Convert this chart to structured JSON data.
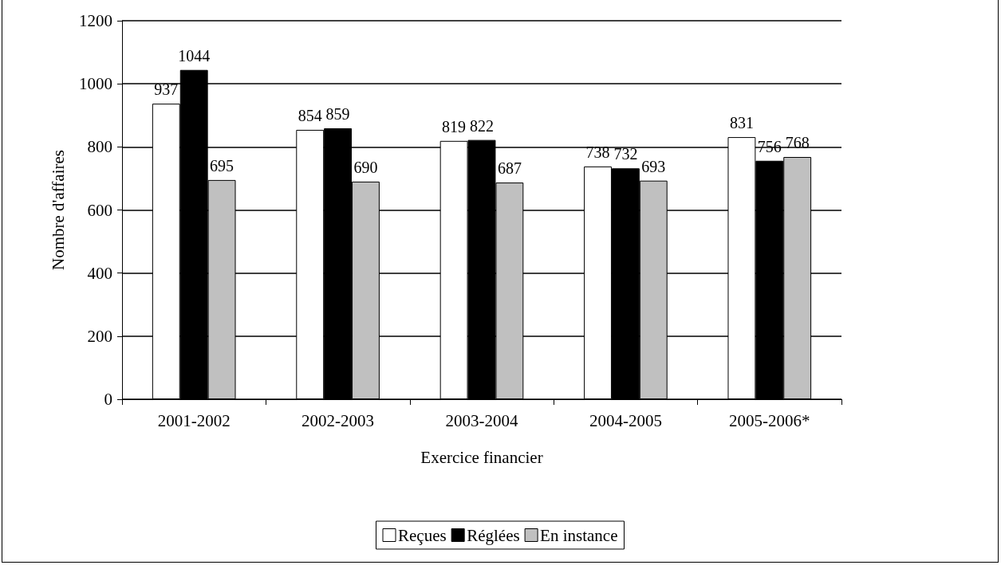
{
  "chart_data": {
    "type": "bar",
    "xlabel": "Exercice financier",
    "ylabel": "Nombre d'affaires",
    "categories": [
      "2001-2002",
      "2002-2003",
      "2003-2004",
      "2004-2005",
      "2005-2006*"
    ],
    "series": [
      {
        "name": "Reçues",
        "color": "#ffffff",
        "values": [
          937,
          854,
          819,
          738,
          831
        ]
      },
      {
        "name": "Réglées",
        "color": "#000000",
        "values": [
          1044,
          859,
          822,
          732,
          756
        ]
      },
      {
        "name": "En instance",
        "color": "#c0c0c0",
        "values": [
          695,
          690,
          687,
          693,
          768
        ]
      }
    ],
    "ylim": [
      0,
      1200
    ],
    "yticks": [
      0,
      200,
      400,
      600,
      800,
      1000,
      1200
    ],
    "grid": "y",
    "legend": "bottom",
    "data_labels": true
  }
}
